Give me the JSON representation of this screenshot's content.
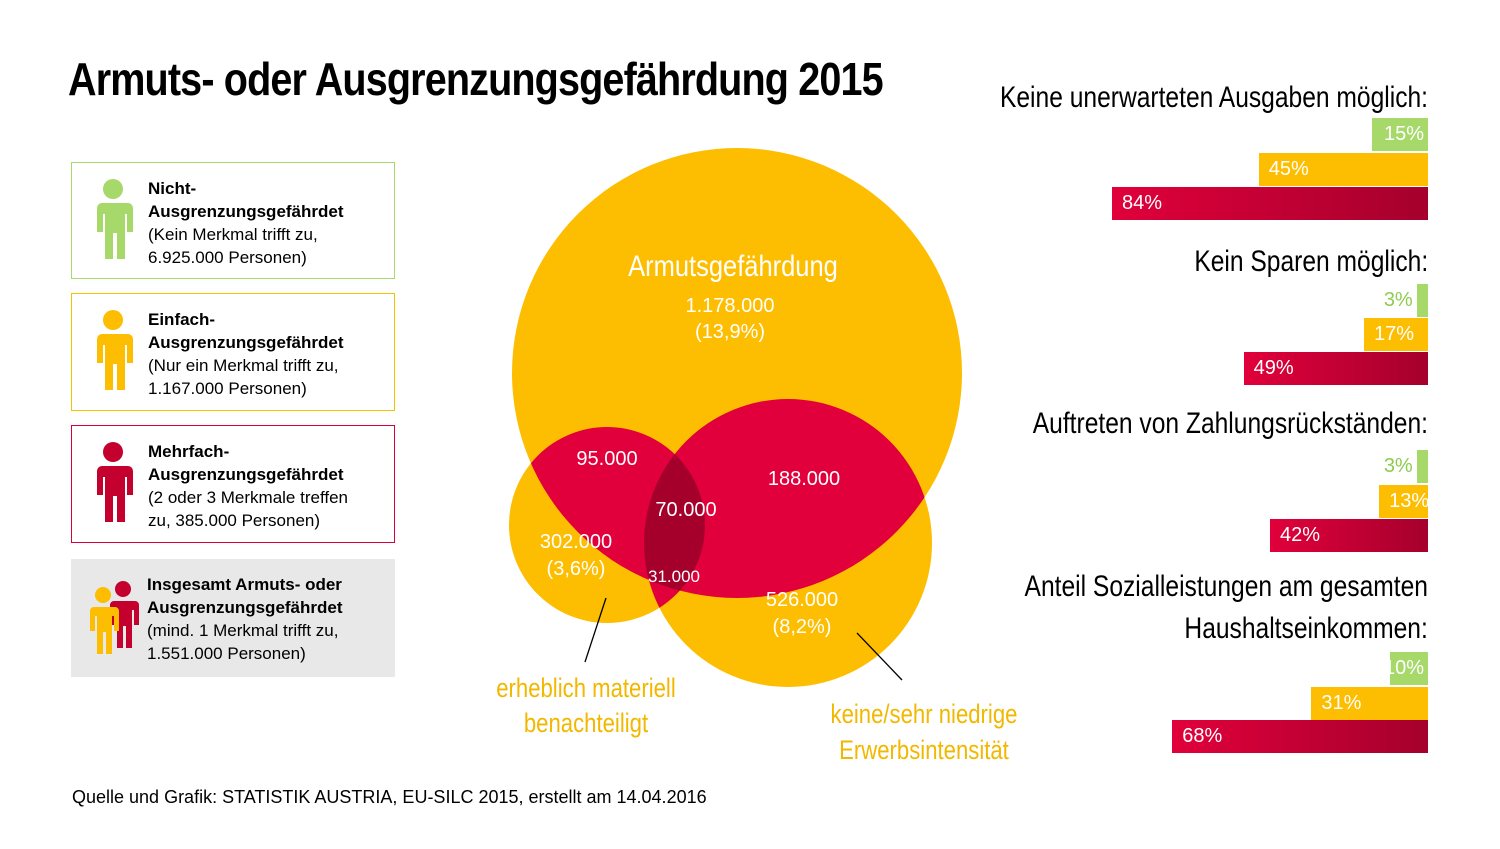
{
  "title": "Armuts- oder Ausgrenzungsgefährdung 2015",
  "colors": {
    "green": "#a6d96a",
    "yellow": "#fdbd00",
    "red": "#e1003b",
    "dark": "#a5002c",
    "gray": "#e8e8e8"
  },
  "legend": [
    {
      "bold1": "Nicht-",
      "bold2": "Ausgrenzungsgefährdet",
      "line1": "(Kein Merkmal trifft zu,",
      "line2": "6.925.000 Personen)"
    },
    {
      "bold1": "Einfach-",
      "bold2": "Ausgrenzungsgefährdet",
      "line1": "(Nur ein Merkmal trifft zu,",
      "line2": "1.167.000 Personen)"
    },
    {
      "bold1": "Mehrfach-",
      "bold2": "Ausgrenzungsgefährdet",
      "line1": "(2 oder 3 Merkmale treffen",
      "line2": "zu, 385.000 Personen)"
    },
    {
      "bold1": "Insgesamt Armuts- oder",
      "bold2": "Ausgrenzungsgefährdet",
      "line1": "(mind. 1  Merkmal trifft zu,",
      "line2": "1.551.000 Personen)"
    }
  ],
  "chart_data": [
    {
      "type": "venn",
      "sets": [
        "Armutsgefährdung",
        "erheblich materiell benachteiligt",
        "keine/sehr niedrige Erwerbsintensität"
      ],
      "labels": {
        "big_title": "Armutsgefährdung",
        "poverty_only": "1.178.000",
        "poverty_only_pct": "(13,9%)",
        "poverty_material": "95.000",
        "poverty_work": "188.000",
        "all_three": "70.000",
        "material_only": "302.000",
        "material_only_pct": "(3,6%)",
        "material_work": "31.000",
        "work_only": "526.000",
        "work_only_pct": "(8,2%)",
        "material_label_1": "erheblich materiell",
        "material_label_2": "benachteiligt",
        "work_label_1": "keine/sehr niedrige",
        "work_label_2": "Erwerbsintensität"
      }
    },
    {
      "type": "bar",
      "groups": [
        {
          "title": "Keine unerwarteten Ausgaben möglich:",
          "values": [
            15,
            45,
            84
          ],
          "labels": [
            "15%",
            "45%",
            "84%"
          ]
        },
        {
          "title": "Kein Sparen möglich:",
          "values": [
            3,
            17,
            49
          ],
          "labels": [
            "3%",
            "17%",
            "49%"
          ]
        },
        {
          "title": "Auftreten von Zahlungsrückständen:",
          "values": [
            3,
            13,
            42
          ],
          "labels": [
            "3%",
            "13%",
            "42%"
          ]
        },
        {
          "title1": "Anteil Sozialleistungen am gesamten",
          "title2": "Haushaltseinkommen:",
          "values": [
            10,
            31,
            68
          ],
          "labels": [
            "10%",
            "31%",
            "68%"
          ]
        }
      ],
      "series": [
        "Nicht-Ausgrenzungsgefährdet",
        "Einfach-Ausgrenzungsgefährdet",
        "Mehrfach-Ausgrenzungsgefährdet"
      ],
      "xlim": [
        0,
        100
      ]
    }
  ],
  "footer": "Quelle und Grafik: STATISTIK AUSTRIA, EU-SILC 2015, erstellt am 14.04.2016"
}
